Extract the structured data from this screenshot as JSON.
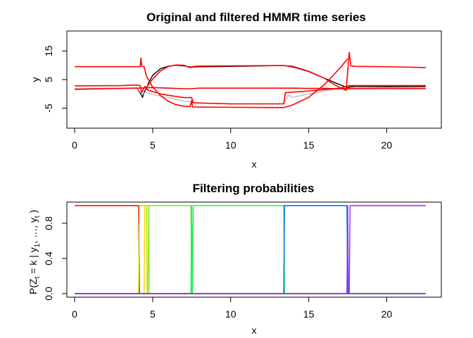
{
  "chart_data": [
    {
      "type": "line",
      "title": "Original and filtered HMMR time series",
      "xlabel": "x",
      "ylabel": "y",
      "xlim": [
        -0.5,
        23.5
      ],
      "ylim": [
        -12,
        22
      ],
      "xticks": [
        0,
        5,
        10,
        15,
        20
      ],
      "yticks": [
        -5,
        5,
        15
      ],
      "grid": false,
      "legend": "none",
      "series": [
        {
          "color": "#000000",
          "x": [
            0,
            4.0,
            4.2,
            4.35,
            4.45,
            4.6,
            4.8,
            5.0,
            5.5,
            6.0,
            6.5,
            7.0,
            7.5,
            8.0,
            10.0,
            13.4,
            14.0,
            15.0,
            16.0,
            17.0,
            17.5,
            17.6,
            18.0,
            20.0,
            22.5
          ],
          "values": [
            1.8,
            2.0,
            0.3,
            -1.2,
            0.5,
            2.0,
            4.5,
            6.5,
            8.8,
            9.7,
            10.0,
            9.8,
            9.4,
            9.5,
            9.6,
            9.9,
            9.4,
            7.8,
            5.5,
            3.2,
            2.1,
            2.4,
            2.6,
            2.5,
            2.6
          ]
        },
        {
          "color": "#bdbdbd",
          "x": [
            0,
            4.0,
            4.3,
            4.6,
            5.0,
            6.0,
            7.0,
            8.0,
            10.0,
            13.4,
            13.7,
            14.0,
            15.0,
            16.0,
            17.0,
            17.6,
            18.0,
            20.0,
            22.5
          ],
          "values": [
            1.9,
            2.1,
            0.0,
            0.5,
            -0.2,
            -1.3,
            -2.5,
            -3.2,
            -3.5,
            -3.5,
            -0.5,
            -1.2,
            0.0,
            1.0,
            1.8,
            1.6,
            1.7,
            1.8,
            1.7
          ]
        },
        {
          "color": "#ff0000",
          "x": [
            0,
            4.2,
            4.25,
            4.3,
            4.45,
            4.6,
            5.0,
            5.5,
            6.0,
            6.5,
            7.0,
            7.4,
            7.5,
            7.55,
            10.0,
            13.4,
            14.0,
            15.0,
            16.0,
            17.0,
            17.5
          ],
          "values": [
            9.5,
            9.5,
            12.6,
            9.7,
            9.5,
            6.2,
            2.4,
            -0.6,
            -2.6,
            -3.8,
            -4.3,
            -4.5,
            -2.3,
            -4.6,
            -4.7,
            -4.8,
            -3.8,
            -1.2,
            3.2,
            9.0,
            12.3
          ]
        },
        {
          "color": "#ff0000",
          "x": [
            4.6,
            5.0,
            5.5,
            6.0,
            6.5,
            7.0,
            7.3,
            7.5,
            7.6,
            8.0,
            10.0,
            13.4,
            14.0,
            15.0,
            16.0,
            16.5,
            17.0,
            17.4,
            17.6,
            17.7,
            18.0,
            20.0,
            22.5
          ],
          "values": [
            2.3,
            5.2,
            8.0,
            9.6,
            10.1,
            10.0,
            9.4,
            9.2,
            9.6,
            9.7,
            9.8,
            9.9,
            9.6,
            7.9,
            5.5,
            3.7,
            2.2,
            1.2,
            14.5,
            9.8,
            9.6,
            9.5,
            9.2
          ]
        },
        {
          "color": "#ff0000",
          "x": [
            0,
            3.0,
            4.0,
            4.2,
            4.3,
            4.5,
            4.7,
            5.0,
            5.5,
            6.0,
            7.0,
            7.5,
            7.6,
            8.0,
            10.0,
            13.4,
            13.5,
            14.0,
            15.0,
            16.0,
            17.0,
            17.5,
            17.6,
            18.0,
            20.0,
            22.5
          ],
          "values": [
            2.8,
            2.9,
            3.1,
            2.9,
            0.5,
            2.6,
            1.3,
            0.8,
            0.0,
            -0.5,
            -1.3,
            -1.3,
            -3.1,
            -3.2,
            -3.5,
            -3.5,
            0.4,
            0.6,
            1.0,
            1.5,
            2.0,
            2.7,
            2.9,
            2.9,
            2.9,
            2.9
          ]
        },
        {
          "color": "#ff0000",
          "x": [
            0,
            2.0,
            4.0,
            4.5,
            5.0,
            6.0,
            7.0,
            7.5,
            8.0,
            10.0,
            13.4,
            14.0,
            15.0,
            16.0,
            17.0,
            17.5,
            18.0,
            20.0,
            22.5
          ],
          "values": [
            1.6,
            1.8,
            2.0,
            2.1,
            2.2,
            2.0,
            1.8,
            1.8,
            2.0,
            2.0,
            2.0,
            2.0,
            1.9,
            1.9,
            1.8,
            1.9,
            1.9,
            1.9,
            1.9
          ]
        }
      ]
    },
    {
      "type": "line",
      "title": "Filtering probabilities",
      "xlabel": "x",
      "ylabel": "P(Z_t = k | y_1, ..., y_t)",
      "ylabel_parts": [
        "P(Z",
        "t",
        " = k | y",
        "1",
        ", …, y",
        "t",
        " )"
      ],
      "xlim": [
        -0.5,
        23.5
      ],
      "ylim": [
        -0.04,
        1.04
      ],
      "xticks": [
        0,
        5,
        10,
        15,
        20
      ],
      "yticks": [
        0.0,
        0.4,
        0.8
      ],
      "grid": false,
      "legend": "none",
      "series": [
        {
          "color": "#ff0000",
          "x": [
            0,
            4.1,
            4.15,
            22.5
          ],
          "values": [
            1,
            1,
            0,
            0
          ]
        },
        {
          "color": "#b8e600",
          "x": [
            0,
            4.1,
            4.15,
            4.6,
            4.65,
            22.5
          ],
          "values": [
            0,
            0,
            1,
            1,
            0,
            0
          ]
        },
        {
          "color": "#ffd200",
          "x": [
            0,
            4.45,
            4.5,
            4.75,
            4.8,
            22.5
          ],
          "values": [
            0,
            0,
            1,
            1,
            0,
            0
          ]
        },
        {
          "color": "#66ee22",
          "x": [
            0,
            4.7,
            4.75,
            7.45,
            7.5,
            22.5
          ],
          "values": [
            0,
            0,
            1,
            1,
            0,
            0
          ]
        },
        {
          "color": "#22ee55",
          "x": [
            0,
            7.45,
            7.5,
            7.55,
            7.6,
            13.4,
            13.45,
            22.5
          ],
          "values": [
            0,
            0,
            1,
            0,
            1,
            1,
            0,
            0
          ]
        },
        {
          "color": "#0066ee",
          "x": [
            0,
            13.4,
            13.45,
            17.45,
            17.5,
            22.5
          ],
          "values": [
            0,
            0,
            1,
            1,
            0,
            0
          ]
        },
        {
          "color": "#7744ee",
          "x": [
            0,
            17.45,
            17.5,
            17.55,
            17.6,
            22.5
          ],
          "values": [
            0,
            0,
            1,
            0,
            0,
            0
          ]
        },
        {
          "color": "#aa22ee",
          "x": [
            0,
            17.6,
            17.65,
            22.5
          ],
          "values": [
            0,
            0,
            1,
            1
          ]
        }
      ]
    }
  ]
}
